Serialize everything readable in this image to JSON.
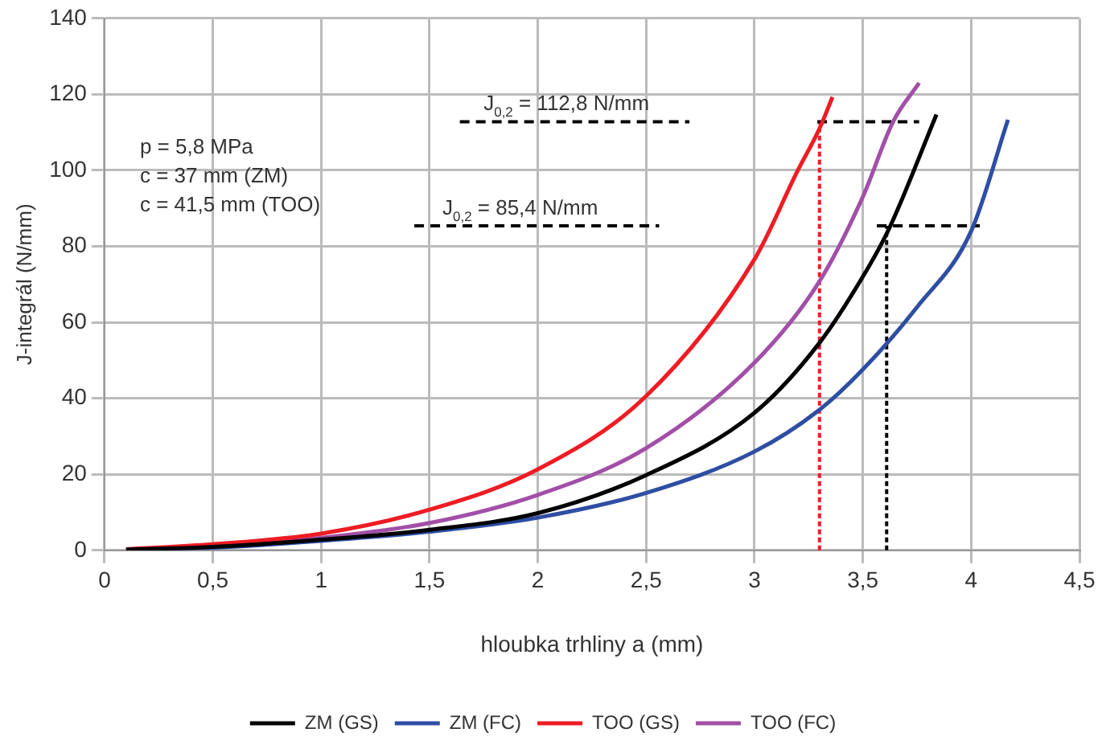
{
  "chart_data": {
    "type": "line",
    "xlabel": "hloubka trhliny a (mm)",
    "ylabel": "J-integrál (N/mm)",
    "xlim": [
      0,
      4.5
    ],
    "xticks": [
      0,
      {
        "value": 0.5,
        "label": "0,5"
      },
      1,
      {
        "value": 1.5,
        "label": "1,5"
      },
      2,
      {
        "value": 2.5,
        "label": "2,5"
      },
      3,
      {
        "value": 3.5,
        "label": "3,5"
      },
      4,
      {
        "value": 4.5,
        "label": "4,5"
      }
    ],
    "ylim": [
      0,
      140
    ],
    "yticks": [
      0,
      20,
      40,
      60,
      80,
      100,
      120,
      140
    ],
    "grid": true,
    "legend": "bottom",
    "marker": "none",
    "line_style": "solid",
    "series": [
      {
        "name": "ZM (GS)",
        "color": "#000000",
        "x": [
          0.1,
          0.5,
          1,
          1.5,
          2,
          2.5,
          3,
          3.3,
          3.5,
          3.62,
          3.84
        ],
        "values": [
          0.2,
          0.9,
          2.8,
          5.4,
          9.8,
          19.8,
          36.2,
          54.6,
          72,
          84.5,
          114.7
        ]
      },
      {
        "name": "ZM (FC)",
        "color": "#2e4ea3",
        "x": [
          0.1,
          0.5,
          1,
          1.5,
          2,
          2.5,
          3,
          3.3,
          3.5,
          3.75,
          4,
          4.17
        ],
        "values": [
          0.2,
          0.7,
          2.5,
          4.9,
          8.6,
          15.1,
          26,
          37,
          47.6,
          64,
          84,
          113.3
        ]
      },
      {
        "name": "TOO (GS)",
        "color": "#ee1c24",
        "x": [
          0.1,
          0.5,
          1,
          1.5,
          2,
          2.5,
          3,
          3.2,
          3.3,
          3.36
        ],
        "values": [
          0.3,
          1.6,
          4.4,
          10.7,
          21.3,
          40.6,
          76.6,
          100,
          111,
          119.3
        ]
      },
      {
        "name": "TOO (FC)",
        "color": "#a24fa8",
        "x": [
          0.1,
          0.5,
          1,
          1.5,
          2,
          2.5,
          3,
          3.3,
          3.5,
          3.64,
          3.76
        ],
        "values": [
          0.2,
          1,
          3.3,
          7.2,
          14.6,
          26.9,
          49.4,
          70.8,
          93,
          112.8,
          123
        ]
      },
      {
        "color": "#000000",
        "line_style": "dashed",
        "x": [
          1.64,
          2.7
        ],
        "values": [
          112.8,
          112.8
        ]
      },
      {
        "color": "#000000",
        "line_style": "dashed",
        "x": [
          3.29,
          3.76
        ],
        "values": [
          112.8,
          112.8
        ]
      },
      {
        "color": "#000000",
        "line_style": "dashed",
        "x": [
          1.43,
          2.56
        ],
        "values": [
          85.4,
          85.4
        ]
      },
      {
        "color": "#000000",
        "line_style": "dashed",
        "x": [
          3.565,
          4.04
        ],
        "values": [
          85.4,
          85.4
        ]
      },
      {
        "color": "#ee1c24",
        "line_style": "dotted",
        "x": [
          3.3,
          3.3
        ],
        "values": [
          0,
          112.8
        ]
      },
      {
        "color": "#000000",
        "line_style": "dotted",
        "x": [
          3.61,
          3.61
        ],
        "values": [
          0,
          85.4
        ]
      }
    ],
    "annotations": [
      {
        "text": "J$_{0,2}$ = 112,8 N/mm",
        "x": 1.75,
        "y": 112.8
      },
      {
        "text": "J$_{0,2}$ = 85,4 N/mm",
        "x": 1.56,
        "y": 85.4
      },
      "p = 5,8 MPa",
      "c = 37 mm (ZM)",
      "c = 41,5 mm (TOO)"
    ]
  }
}
